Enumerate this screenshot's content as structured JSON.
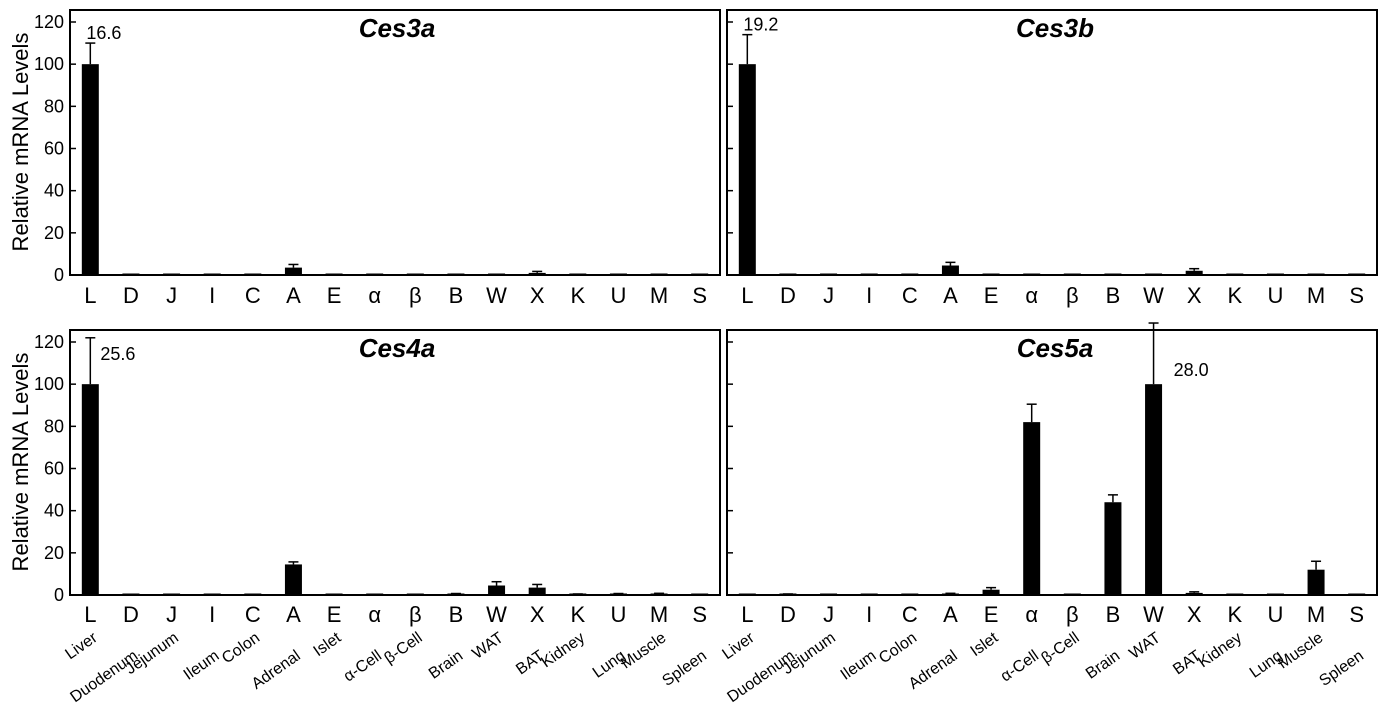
{
  "figure": {
    "ylabel": "Relative mRNA Levels",
    "full_names": [
      "Liver",
      "Duodenum",
      "Jejunum",
      "Ileum",
      "Colon",
      "Adrenal",
      "Islet",
      "α-Cell",
      "β-Cell",
      "Brain",
      "WAT",
      "BAT",
      "Kidney",
      "Lung",
      "Muscle",
      "Spleen"
    ]
  },
  "chart_data": [
    {
      "type": "bar",
      "title": "Ces3a",
      "ylabel": "Relative mRNA Levels",
      "ylim": [
        0,
        120
      ],
      "yticks": [
        0,
        20,
        40,
        60,
        80,
        100,
        120
      ],
      "categories": [
        "L",
        "D",
        "J",
        "I",
        "C",
        "A",
        "E",
        "α",
        "β",
        "B",
        "W",
        "X",
        "K",
        "U",
        "M",
        "S"
      ],
      "values": [
        100,
        0,
        0,
        0,
        0,
        3.5,
        0,
        0,
        0,
        0,
        0,
        1,
        0,
        0,
        0,
        0
      ],
      "errors": [
        10,
        0,
        0,
        0,
        0,
        1.5,
        0,
        0,
        0,
        0,
        0,
        0.7,
        0,
        0,
        0,
        0
      ],
      "annotation": {
        "text": "16.6",
        "category_index": 0
      }
    },
    {
      "type": "bar",
      "title": "Ces3b",
      "ylabel": "",
      "ylim": [
        0,
        120
      ],
      "yticks": [
        0,
        20,
        40,
        60,
        80,
        100,
        120
      ],
      "categories": [
        "L",
        "D",
        "J",
        "I",
        "C",
        "A",
        "E",
        "α",
        "β",
        "B",
        "W",
        "X",
        "K",
        "U",
        "M",
        "S"
      ],
      "values": [
        100,
        0,
        0,
        0,
        0,
        4.5,
        0,
        0,
        0,
        0,
        0,
        2,
        0,
        0,
        0,
        0
      ],
      "errors": [
        14,
        0,
        0,
        0,
        0,
        1.5,
        0,
        0,
        0,
        0,
        0,
        1,
        0,
        0,
        0,
        0
      ],
      "annotation": {
        "text": "19.2",
        "category_index": 0
      }
    },
    {
      "type": "bar",
      "title": "Ces4a",
      "ylabel": "Relative mRNA Levels",
      "ylim": [
        0,
        120
      ],
      "yticks": [
        0,
        20,
        40,
        60,
        80,
        100,
        120
      ],
      "categories": [
        "L",
        "D",
        "J",
        "I",
        "C",
        "A",
        "E",
        "α",
        "β",
        "B",
        "W",
        "X",
        "K",
        "U",
        "M",
        "S"
      ],
      "values": [
        100,
        0,
        0,
        0,
        0,
        14.5,
        0,
        0,
        0,
        0.5,
        4.5,
        3.5,
        0.3,
        0.5,
        0.5,
        0
      ],
      "errors": [
        22,
        0,
        0,
        0,
        0,
        1.2,
        0,
        0,
        0,
        0.2,
        1.8,
        1.5,
        0.2,
        0.2,
        0.3,
        0
      ],
      "annotation": {
        "text": "25.6",
        "category_index": 0
      }
    },
    {
      "type": "bar",
      "title": "Ces5a",
      "ylabel": "",
      "ylim": [
        0,
        120
      ],
      "yticks": [
        0,
        20,
        40,
        60,
        80,
        100,
        120
      ],
      "categories": [
        "L",
        "D",
        "J",
        "I",
        "C",
        "A",
        "E",
        "α",
        "β",
        "B",
        "W",
        "X",
        "K",
        "U",
        "M",
        "S"
      ],
      "values": [
        0,
        0.3,
        0,
        0,
        0,
        0.5,
        2.5,
        82,
        0,
        44,
        100,
        1,
        0,
        0,
        12,
        0
      ],
      "errors": [
        0,
        0.2,
        0,
        0,
        0,
        0.3,
        1,
        8.5,
        0,
        3.5,
        29,
        0.5,
        0,
        0,
        4,
        0
      ],
      "annotation": {
        "text": "28.0",
        "category_index": 10
      }
    }
  ]
}
